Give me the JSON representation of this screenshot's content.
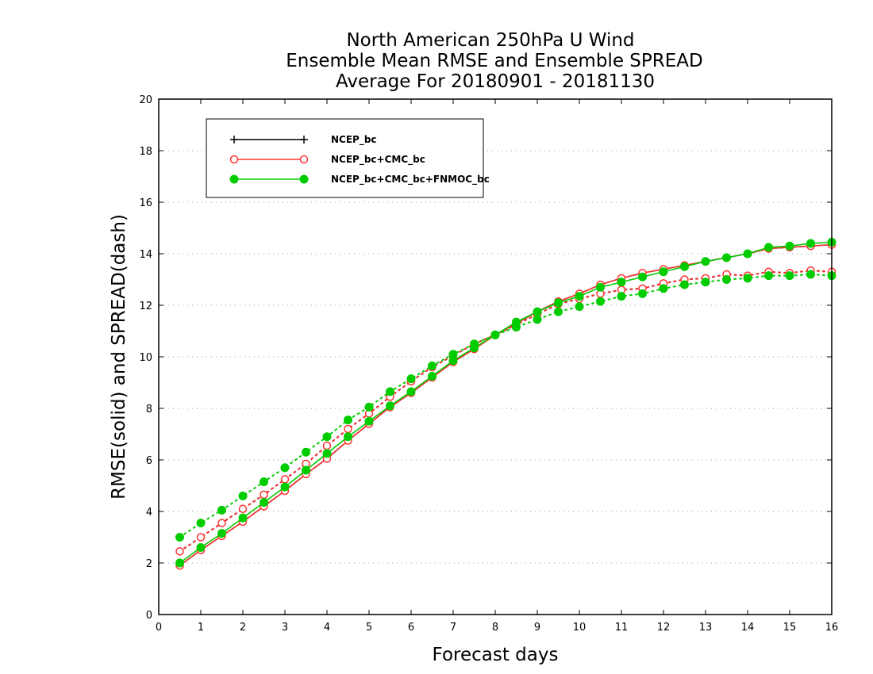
{
  "chart_data": {
    "type": "line",
    "title_lines": [
      "North American 250hPa U Wind",
      "Ensemble Mean RMSE and Ensemble SPREAD",
      "Average For 20180901 - 20181130"
    ],
    "xlabel": "Forecast days",
    "ylabel": "RMSE(solid) and SPREAD(dash)",
    "xlim": [
      0,
      16
    ],
    "ylim": [
      0,
      20
    ],
    "x_ticks": [
      "0",
      "1",
      "2",
      "3",
      "4",
      "5",
      "6",
      "7",
      "8",
      "9",
      "10",
      "11",
      "12",
      "13",
      "14",
      "15",
      "16"
    ],
    "y_ticks": [
      "0",
      "2",
      "4",
      "6",
      "8",
      "10",
      "12",
      "14",
      "16",
      "18",
      "20"
    ],
    "grid": "horizontal dotted",
    "legend_position": "top-left",
    "x": [
      0.5,
      1,
      1.5,
      2,
      2.5,
      3,
      3.5,
      4,
      4.5,
      5,
      5.5,
      6,
      6.5,
      7,
      7.5,
      8,
      8.5,
      9,
      9.5,
      10,
      10.5,
      11,
      11.5,
      12,
      12.5,
      13,
      13.5,
      14,
      14.5,
      15,
      15.5,
      16
    ],
    "series": [
      {
        "name": "NCEP_bc",
        "color": "#000000",
        "marker": "plus",
        "rmse": [
          1.9,
          2.5,
          3.05,
          3.6,
          4.2,
          4.8,
          5.45,
          6.05,
          6.75,
          7.4,
          8.05,
          8.6,
          9.2,
          9.8,
          10.3,
          10.85,
          11.3,
          11.75,
          12.15,
          12.45,
          12.8,
          13.05,
          13.25,
          13.4,
          13.55,
          13.7,
          13.85,
          14.0,
          14.2,
          14.25,
          14.3,
          14.35
        ],
        "spread": [
          2.45,
          3.0,
          3.55,
          4.1,
          4.65,
          5.25,
          5.85,
          6.55,
          7.2,
          7.8,
          8.45,
          9.05,
          9.6,
          10.05,
          10.5,
          10.85,
          11.25,
          11.65,
          12.05,
          12.25,
          12.45,
          12.6,
          12.65,
          12.85,
          13.0,
          13.05,
          13.2,
          13.15,
          13.3,
          13.25,
          13.35,
          13.3
        ]
      },
      {
        "name": "NCEP_bc+CMC_bc",
        "color": "#ff3333",
        "marker": "open-circle",
        "rmse": [
          1.9,
          2.5,
          3.05,
          3.6,
          4.2,
          4.8,
          5.45,
          6.05,
          6.75,
          7.4,
          8.05,
          8.6,
          9.2,
          9.8,
          10.3,
          10.85,
          11.3,
          11.75,
          12.15,
          12.45,
          12.8,
          13.05,
          13.25,
          13.4,
          13.55,
          13.7,
          13.85,
          14.0,
          14.2,
          14.25,
          14.3,
          14.35
        ],
        "spread": [
          2.45,
          3.0,
          3.55,
          4.1,
          4.65,
          5.25,
          5.85,
          6.55,
          7.2,
          7.8,
          8.45,
          9.05,
          9.6,
          10.05,
          10.5,
          10.85,
          11.25,
          11.65,
          12.05,
          12.25,
          12.45,
          12.6,
          12.65,
          12.85,
          13.0,
          13.05,
          13.2,
          13.15,
          13.3,
          13.25,
          13.35,
          13.3
        ]
      },
      {
        "name": "NCEP_bc+CMC_bc+FNMOC_bc",
        "color": "#00cc00",
        "marker": "filled-circle",
        "rmse": [
          2.0,
          2.6,
          3.15,
          3.75,
          4.35,
          4.95,
          5.6,
          6.25,
          6.9,
          7.5,
          8.1,
          8.65,
          9.25,
          9.85,
          10.35,
          10.85,
          11.35,
          11.75,
          12.1,
          12.35,
          12.7,
          12.9,
          13.1,
          13.3,
          13.5,
          13.7,
          13.85,
          14.0,
          14.25,
          14.3,
          14.4,
          14.45
        ],
        "spread": [
          3.0,
          3.55,
          4.05,
          4.6,
          5.15,
          5.7,
          6.3,
          6.9,
          7.55,
          8.05,
          8.65,
          9.15,
          9.65,
          10.1,
          10.5,
          10.85,
          11.15,
          11.45,
          11.75,
          11.95,
          12.15,
          12.35,
          12.45,
          12.65,
          12.8,
          12.9,
          13.0,
          13.05,
          13.15,
          13.15,
          13.2,
          13.15
        ]
      }
    ]
  }
}
